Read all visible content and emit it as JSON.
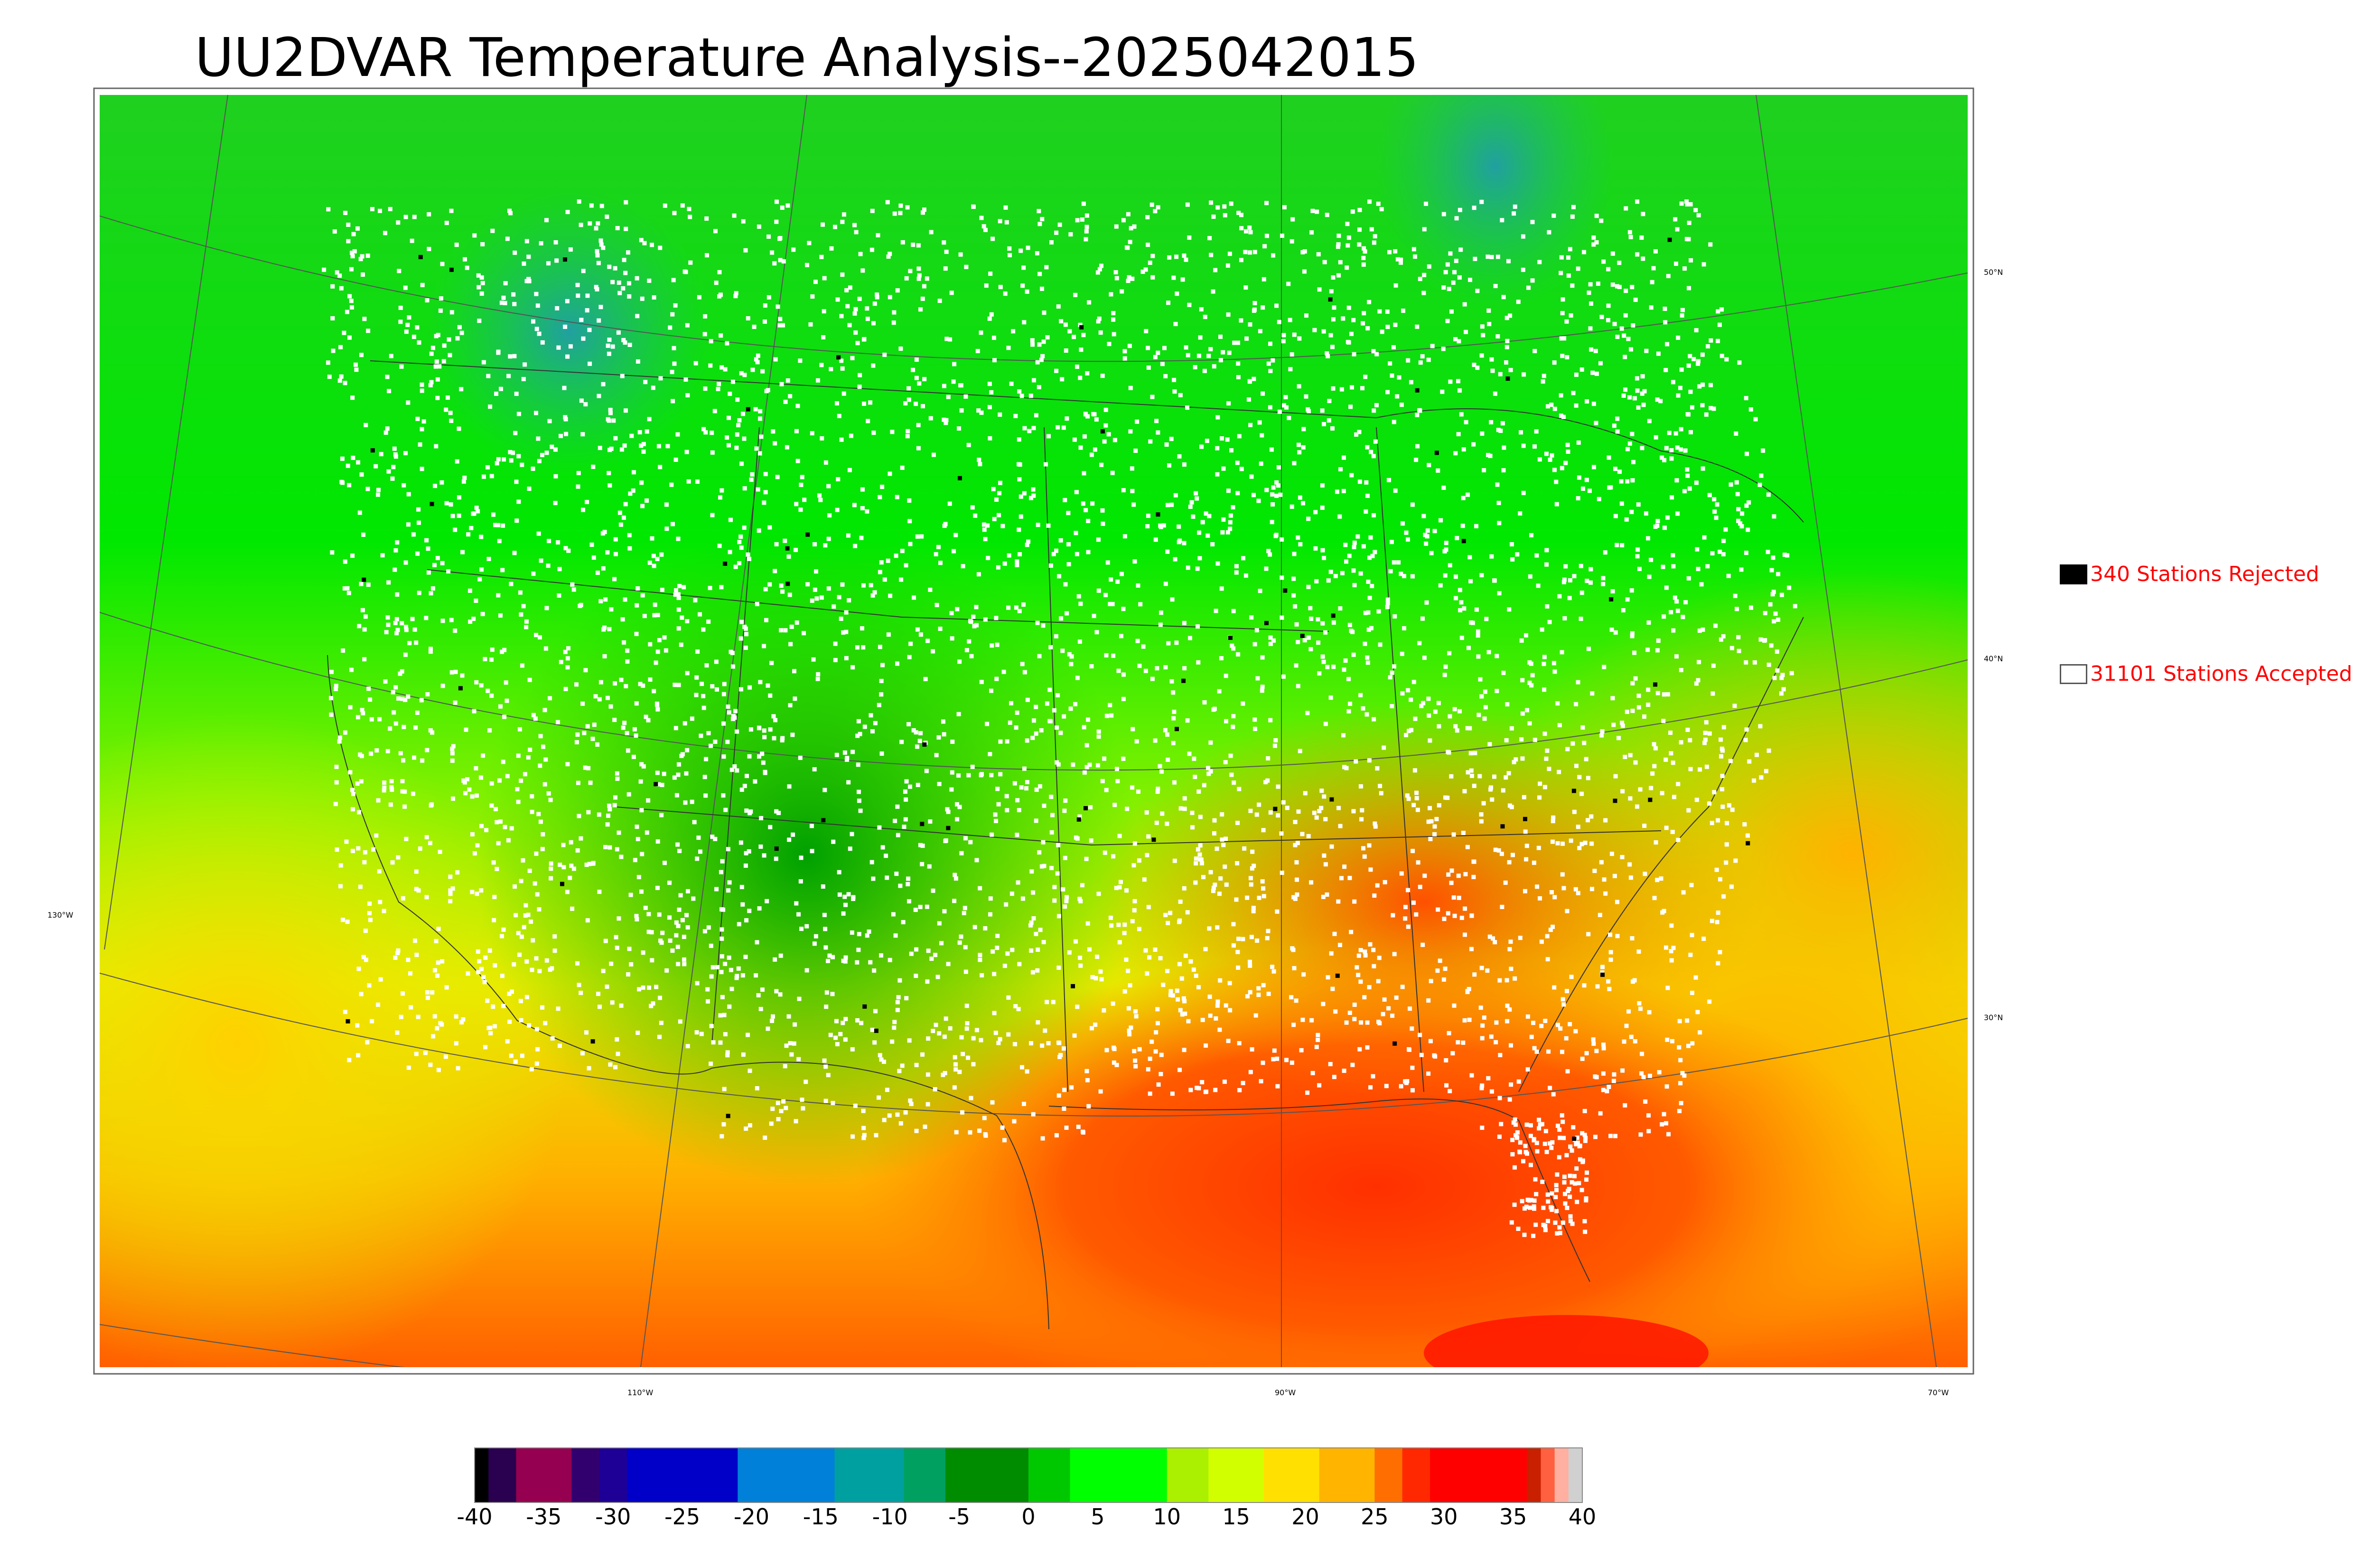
{
  "title": "UU2DVAR Temperature Analysis--2025042015",
  "legend": {
    "rejected_label": "340 Stations Rejected",
    "accepted_label": "31101 Stations Accepted"
  },
  "map": {
    "lat_labels": [
      "50°N",
      "40°N",
      "30°N"
    ],
    "lon_labels": [
      "130°W",
      "110°W",
      "90°W",
      "70°W"
    ]
  },
  "colorbar": {
    "ticks": [
      "-40",
      "-35",
      "-30",
      "-25",
      "-20",
      "-15",
      "-10",
      "-5",
      "0",
      "5",
      "10",
      "15",
      "20",
      "25",
      "30",
      "35",
      "40"
    ],
    "range": [
      -40,
      40
    ],
    "bins": [
      {
        "from": -40,
        "to": -39,
        "color": "#000000"
      },
      {
        "from": -39,
        "to": -37,
        "color": "#2a0050"
      },
      {
        "from": -37,
        "to": -33,
        "color": "#960050"
      },
      {
        "from": -33,
        "to": -31,
        "color": "#32006e"
      },
      {
        "from": -31,
        "to": -29,
        "color": "#1e0096"
      },
      {
        "from": -29,
        "to": -21,
        "color": "#0000c8"
      },
      {
        "from": -21,
        "to": -14,
        "color": "#0080d8"
      },
      {
        "from": -14,
        "to": -9,
        "color": "#00a0a0"
      },
      {
        "from": -9,
        "to": -6,
        "color": "#00a060"
      },
      {
        "from": -6,
        "to": 0,
        "color": "#008c00"
      },
      {
        "from": 0,
        "to": 3,
        "color": "#00c800"
      },
      {
        "from": 3,
        "to": 10,
        "color": "#00ff00"
      },
      {
        "from": 10,
        "to": 13,
        "color": "#aaf000"
      },
      {
        "from": 13,
        "to": 17,
        "color": "#d2ff00"
      },
      {
        "from": 17,
        "to": 21,
        "color": "#ffe000"
      },
      {
        "from": 21,
        "to": 25,
        "color": "#ffb400"
      },
      {
        "from": 25,
        "to": 27,
        "color": "#ff6e00"
      },
      {
        "from": 27,
        "to": 29,
        "color": "#ff2800"
      },
      {
        "from": 29,
        "to": 36,
        "color": "#ff0000"
      },
      {
        "from": 36,
        "to": 37,
        "color": "#c82000"
      },
      {
        "from": 37,
        "to": 38,
        "color": "#ff6040"
      },
      {
        "from": 38,
        "to": 39,
        "color": "#ffb0a0"
      },
      {
        "from": 39,
        "to": 40,
        "color": "#d0d0d0"
      }
    ]
  },
  "colors": {
    "rejected": "#000000",
    "accepted": "#ffffff",
    "legend_text": "#ff0000"
  }
}
